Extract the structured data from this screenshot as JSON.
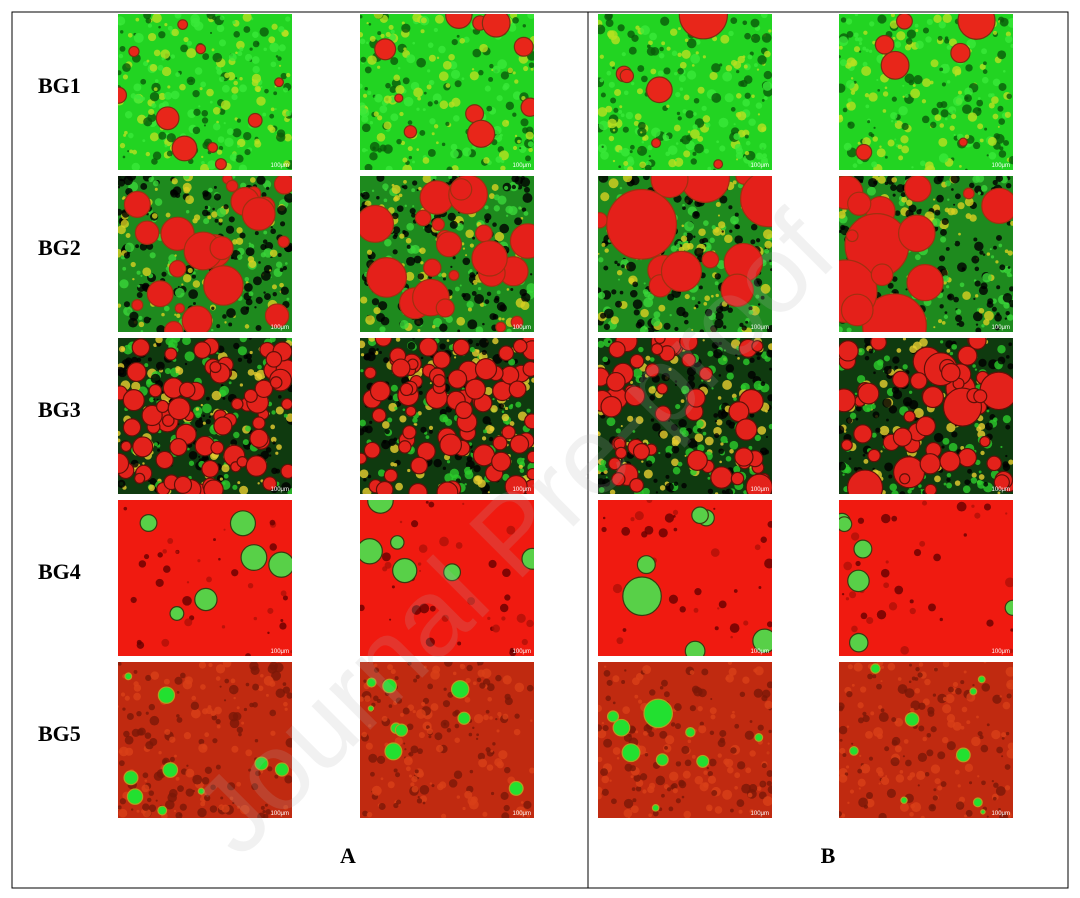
{
  "rows": [
    {
      "label": "BG1"
    },
    {
      "label": "BG2"
    },
    {
      "label": "BG3"
    },
    {
      "label": "BG4"
    },
    {
      "label": "BG5"
    }
  ],
  "columns": [
    "A",
    "B"
  ],
  "scale_bar": "100μm",
  "watermark": "Journal Pre-proof"
}
